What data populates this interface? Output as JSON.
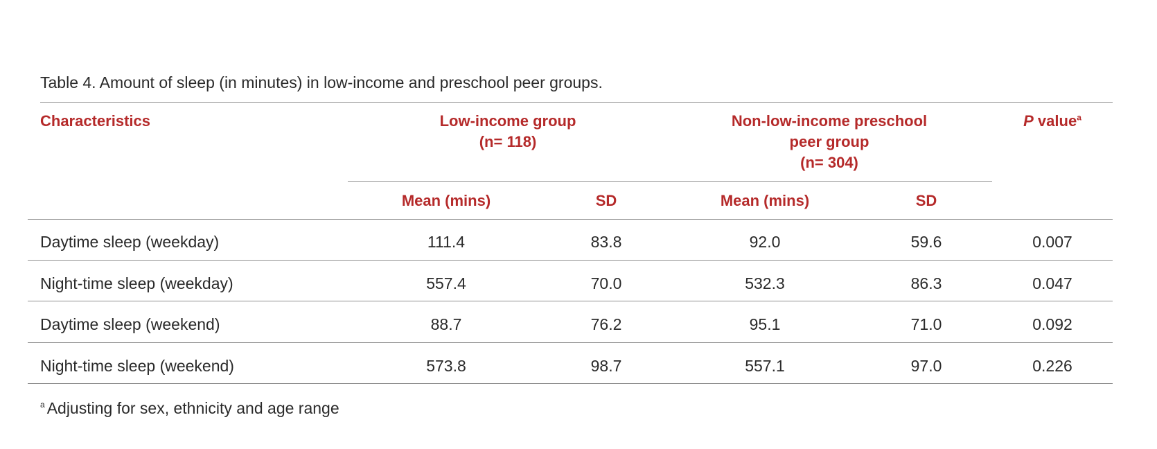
{
  "caption": "Table 4. Amount of sleep (in minutes) in low-income and preschool peer groups.",
  "headers": {
    "characteristics": "Characteristics",
    "low_income_line1": "Low-income group",
    "low_income_line2": "(n= 118)",
    "non_low_income_line1": "Non-low-income preschool",
    "non_low_income_line2": "peer group",
    "non_low_income_line3": "(n= 304)",
    "p_value_italic": "P",
    "p_value_rest": " value",
    "p_value_sup": "a",
    "mean_label": "Mean (mins)",
    "sd_label": "SD"
  },
  "rows": [
    {
      "label": "Daytime sleep (weekday)",
      "low_mean": "111.4",
      "low_sd": "83.8",
      "non_mean": "92.0",
      "non_sd": "59.6",
      "p": "0.007"
    },
    {
      "label": "Night-time sleep (weekday)",
      "low_mean": "557.4",
      "low_sd": "70.0",
      "non_mean": "532.3",
      "non_sd": "86.3",
      "p": "0.047"
    },
    {
      "label": "Daytime sleep (weekend)",
      "low_mean": "88.7",
      "low_sd": "76.2",
      "non_mean": "95.1",
      "non_sd": "71.0",
      "p": "0.092"
    },
    {
      "label": "Night-time sleep (weekend)",
      "low_mean": "573.8",
      "low_sd": "98.7",
      "non_mean": "557.1",
      "non_sd": "97.0",
      "p": "0.226"
    }
  ],
  "footnote": {
    "marker": "a",
    "text": "Adjusting for sex, ethnicity and age range"
  },
  "colors": {
    "header_red": "#b52a2a",
    "rule_gray": "#8e8e8e",
    "body_text": "#2a2a2a"
  }
}
